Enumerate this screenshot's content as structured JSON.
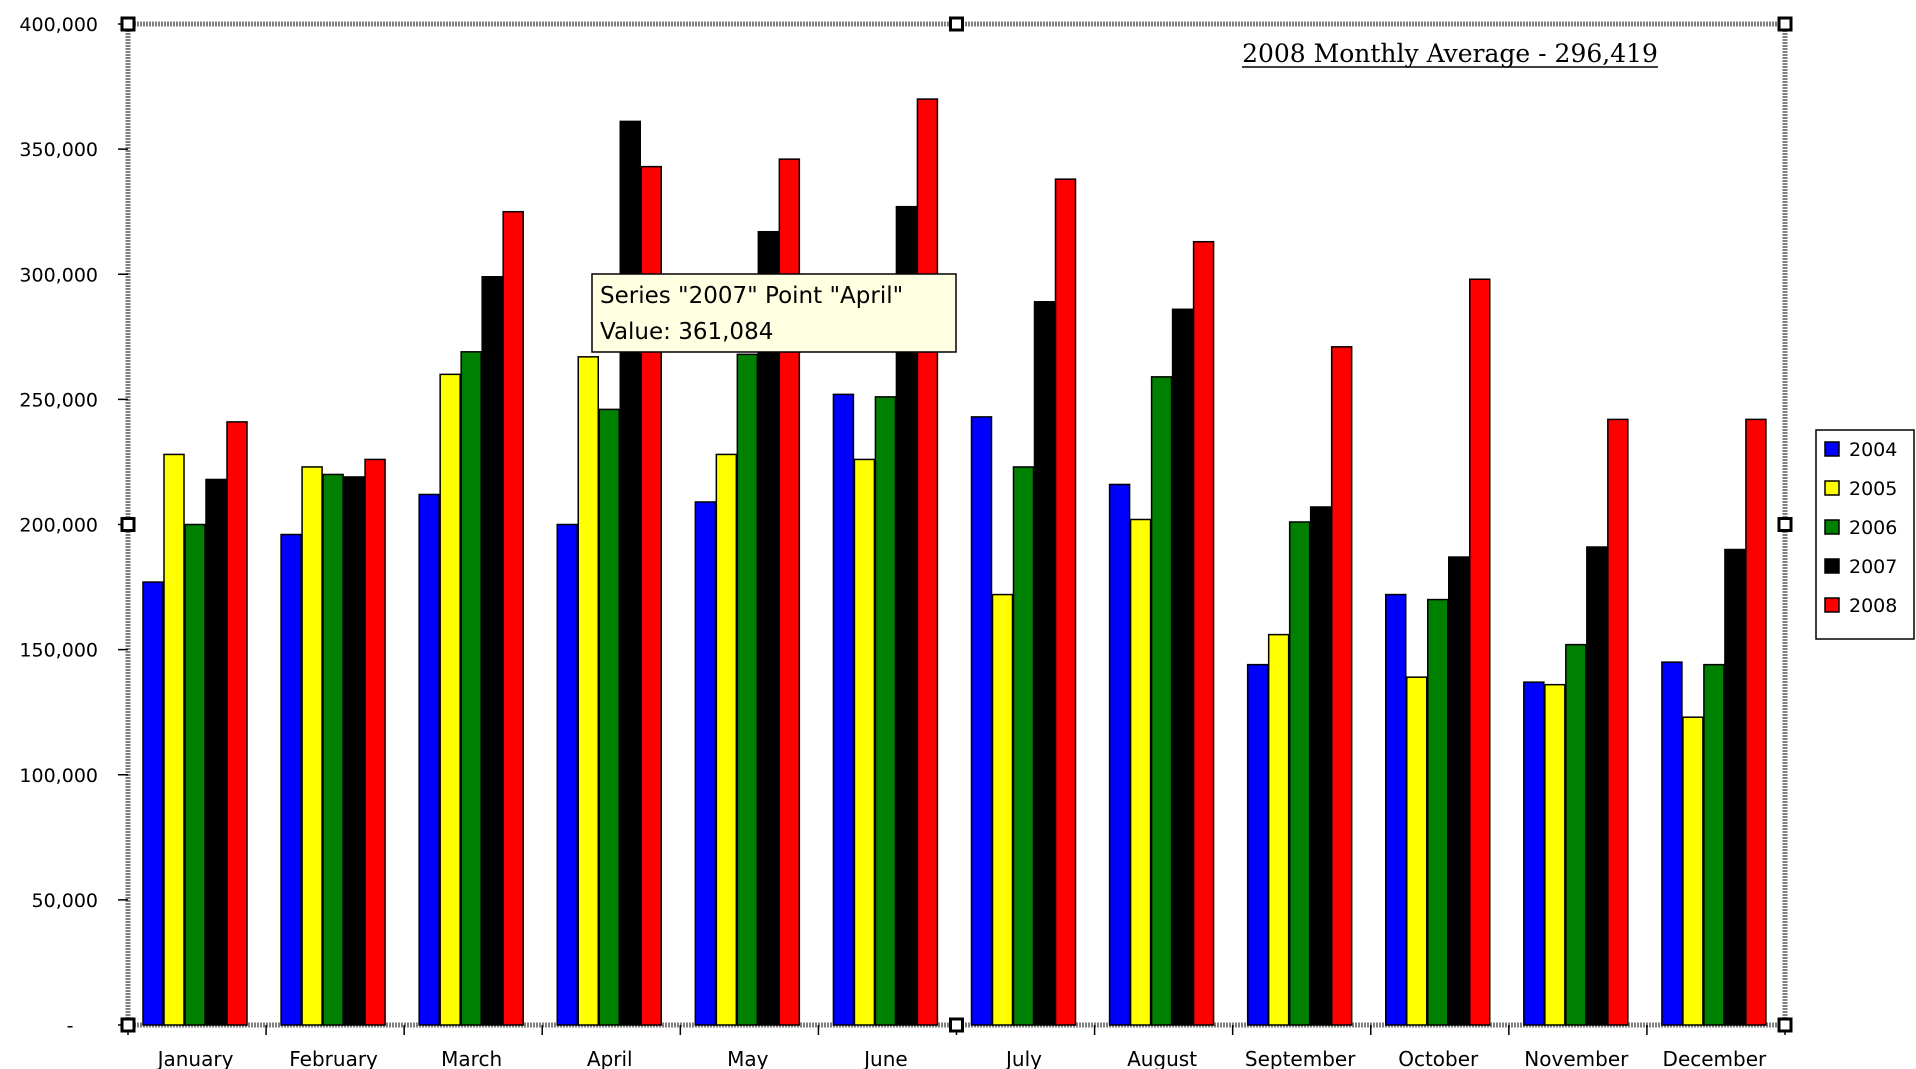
{
  "chart_data": {
    "type": "bar",
    "title": "2008 Monthly Average - 296,419",
    "xlabel": "",
    "ylabel": "",
    "ylim": [
      0,
      400000
    ],
    "y_ticks": [
      0,
      50000,
      100000,
      150000,
      200000,
      250000,
      300000,
      350000,
      400000
    ],
    "y_tick_labels": [
      "-",
      "50,000",
      "100,000",
      "150,000",
      "200,000",
      "250,000",
      "300,000",
      "350,000",
      "400,000"
    ],
    "grid": false,
    "legend_position": "right",
    "categories": [
      "January",
      "February",
      "March",
      "April",
      "May",
      "June",
      "July",
      "August",
      "September",
      "October",
      "November",
      "December"
    ],
    "series": [
      {
        "name": "2004",
        "color": "#0000ff",
        "values": [
          177000,
          196000,
          212000,
          200000,
          209000,
          252000,
          243000,
          216000,
          144000,
          172000,
          137000,
          145000
        ]
      },
      {
        "name": "2005",
        "color": "#ffff00",
        "values": [
          228000,
          223000,
          260000,
          267000,
          228000,
          226000,
          172000,
          202000,
          156000,
          139000,
          136000,
          123000
        ]
      },
      {
        "name": "2006",
        "color": "#008000",
        "values": [
          200000,
          220000,
          269000,
          246000,
          268000,
          251000,
          223000,
          259000,
          201000,
          170000,
          152000,
          144000
        ]
      },
      {
        "name": "2007",
        "color": "#000000",
        "values": [
          218000,
          219000,
          299000,
          361084,
          317000,
          327000,
          289000,
          286000,
          207000,
          187000,
          191000,
          190000
        ]
      },
      {
        "name": "2008",
        "color": "#ff0000",
        "values": [
          241000,
          226000,
          325000,
          343000,
          346000,
          370000,
          338000,
          313000,
          271000,
          298000,
          242000,
          242000
        ]
      }
    ],
    "tooltip": {
      "line1": "Series \"2007\" Point \"April\"",
      "line2": "Value: 361,084",
      "series": "2007",
      "category": "April"
    }
  }
}
